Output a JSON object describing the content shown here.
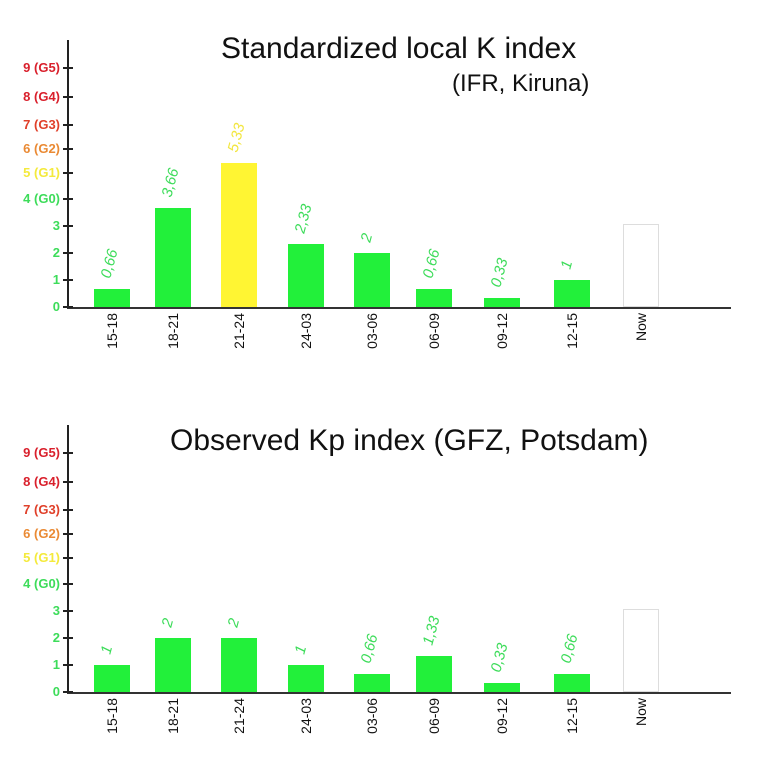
{
  "colors": {
    "green_bar": "#22f03a",
    "yellow_bar": "#fff533",
    "label_green": "#3ddc5a",
    "label_yellow": "#f2e640",
    "g5": "#d9202c",
    "g4": "#d9202c",
    "g3": "#e0402a",
    "g2": "#ea8a34",
    "g1": "#f4ea3c",
    "g0": "#3ddc5a",
    "low": "#3ddc5a"
  },
  "y_ticks": [
    "0",
    "1",
    "2",
    "3",
    "4 (G0)",
    "5 (G1)",
    "6 (G2)",
    "7 (G3)",
    "8 (G4)",
    "9 (G5)"
  ],
  "chart_data": [
    {
      "type": "bar",
      "title": "Standardized local K index",
      "subtitle": "(IFR, Kiruna)",
      "xlabel": "",
      "ylabel": "",
      "ylim": [
        0,
        9
      ],
      "categories": [
        "15-18",
        "18-21",
        "21-24",
        "24-03",
        "03-06",
        "06-09",
        "09-12",
        "12-15",
        "Now"
      ],
      "values": [
        0.66,
        3.66,
        5.33,
        2.33,
        2,
        0.66,
        0.33,
        1,
        null
      ],
      "value_labels": [
        "0,66",
        "3,66",
        "5,33",
        "2,33",
        "2",
        "0,66",
        "0,33",
        "1",
        ""
      ],
      "y_tick_labels": [
        "0",
        "1",
        "2",
        "3",
        "4 (G0)",
        "5 (G1)",
        "6 (G2)",
        "7 (G3)",
        "8 (G4)",
        "9 (G5)"
      ],
      "grid": false,
      "legend": null
    },
    {
      "type": "bar",
      "title": "Observed Kp index (GFZ, Potsdam)",
      "subtitle": "",
      "xlabel": "",
      "ylabel": "",
      "ylim": [
        0,
        9
      ],
      "categories": [
        "15-18",
        "18-21",
        "21-24",
        "24-03",
        "03-06",
        "06-09",
        "09-12",
        "12-15",
        "Now"
      ],
      "values": [
        1,
        2,
        2,
        1,
        0.66,
        1.33,
        0.33,
        0.66,
        null
      ],
      "value_labels": [
        "1",
        "2",
        "2",
        "1",
        "0,66",
        "1,33",
        "0,33",
        "0,66",
        ""
      ],
      "y_tick_labels": [
        "0",
        "1",
        "2",
        "3",
        "4 (G0)",
        "5 (G1)",
        "6 (G2)",
        "7 (G3)",
        "8 (G4)",
        "9 (G5)"
      ],
      "grid": false,
      "legend": null
    }
  ]
}
